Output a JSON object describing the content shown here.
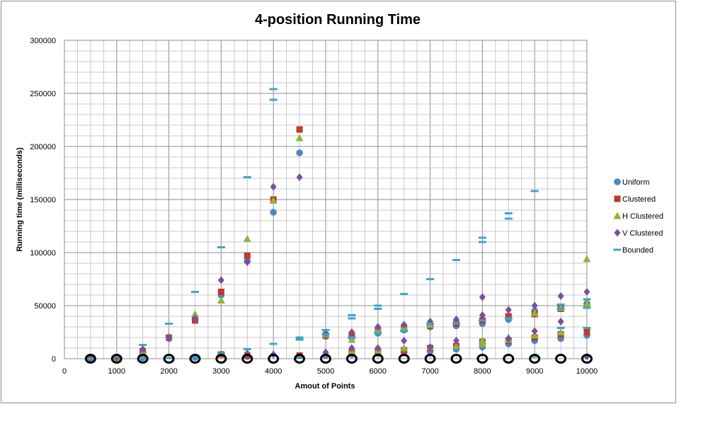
{
  "chart_data": {
    "type": "scatter",
    "title": "4-position Running Time",
    "xlabel": "Amout of Points",
    "ylabel": "Running time (milliseconds)",
    "xlim": [
      0,
      10000
    ],
    "ylim": [
      0,
      300000
    ],
    "x_ticks": [
      "0",
      "1000",
      "2000",
      "3000",
      "4000",
      "5000",
      "6000",
      "7000",
      "8000",
      "9000",
      "10000"
    ],
    "y_ticks": [
      "0",
      "50000",
      "100000",
      "150000",
      "200000",
      "250000",
      "300000"
    ],
    "grid": true,
    "legend_position": "right",
    "series": [
      {
        "name": "Uniform",
        "color": "#4a86c8",
        "marker": "circle",
        "points": [
          [
            500,
            0
          ],
          [
            1000,
            500
          ],
          [
            1500,
            6000
          ],
          [
            2000,
            19000
          ],
          [
            2500,
            37000
          ],
          [
            3000,
            60000
          ],
          [
            3500,
            92000
          ],
          [
            4000,
            138000
          ],
          [
            4500,
            194000
          ],
          [
            5000,
            21000
          ],
          [
            5500,
            20000
          ],
          [
            6000,
            24000
          ],
          [
            6500,
            27000
          ],
          [
            7000,
            30000
          ],
          [
            7500,
            31000
          ],
          [
            8000,
            33000
          ],
          [
            8500,
            37000
          ],
          [
            9000,
            17000
          ],
          [
            9500,
            19000
          ],
          [
            10000,
            22000
          ],
          [
            1500,
            800
          ],
          [
            2500,
            1200
          ],
          [
            3500,
            2000
          ],
          [
            5000,
            3000
          ],
          [
            5500,
            4000
          ],
          [
            6000,
            5000
          ],
          [
            6500,
            6000
          ],
          [
            7000,
            7000
          ],
          [
            7500,
            9000
          ],
          [
            8000,
            11000
          ],
          [
            8500,
            14000
          ],
          [
            9000,
            45000
          ],
          [
            9500,
            48000
          ],
          [
            10000,
            52000
          ]
        ]
      },
      {
        "name": "Clustered",
        "color": "#c0392b",
        "marker": "square",
        "points": [
          [
            500,
            0
          ],
          [
            1000,
            600
          ],
          [
            1500,
            7000
          ],
          [
            2000,
            20000
          ],
          [
            2500,
            36000
          ],
          [
            3000,
            63000
          ],
          [
            3500,
            97000
          ],
          [
            4000,
            150000
          ],
          [
            4500,
            216000
          ],
          [
            5000,
            22000
          ],
          [
            5500,
            22000
          ],
          [
            6000,
            27000
          ],
          [
            6500,
            29000
          ],
          [
            7000,
            31000
          ],
          [
            7500,
            33000
          ],
          [
            8000,
            36000
          ],
          [
            8500,
            40000
          ],
          [
            9000,
            42000
          ],
          [
            9500,
            47000
          ],
          [
            10000,
            50000
          ],
          [
            3000,
            4000
          ],
          [
            3500,
            3000
          ],
          [
            4500,
            3000
          ],
          [
            5500,
            6000
          ],
          [
            6000,
            7000
          ],
          [
            6500,
            8000
          ],
          [
            7000,
            10000
          ],
          [
            7500,
            12000
          ],
          [
            8000,
            16000
          ],
          [
            8500,
            17000
          ],
          [
            9000,
            20000
          ],
          [
            9500,
            23000
          ],
          [
            10000,
            25000
          ]
        ]
      },
      {
        "name": "H Clustered",
        "color": "#8cb43c",
        "marker": "triangle",
        "points": [
          [
            500,
            0
          ],
          [
            1000,
            500
          ],
          [
            1500,
            6000
          ],
          [
            2000,
            21000
          ],
          [
            2500,
            42000
          ],
          [
            3000,
            55000
          ],
          [
            3500,
            113000
          ],
          [
            4000,
            149000
          ],
          [
            4500,
            208000
          ],
          [
            5000,
            23000
          ],
          [
            5500,
            18000
          ],
          [
            6000,
            28000
          ],
          [
            6500,
            30000
          ],
          [
            7000,
            32000
          ],
          [
            7500,
            35000
          ],
          [
            8000,
            17000
          ],
          [
            8500,
            20000
          ],
          [
            9000,
            43000
          ],
          [
            9500,
            48000
          ],
          [
            10000,
            94000
          ],
          [
            5000,
            5000
          ],
          [
            5500,
            7000
          ],
          [
            6000,
            8000
          ],
          [
            6500,
            10000
          ],
          [
            7000,
            11000
          ],
          [
            7500,
            12000
          ],
          [
            8000,
            14000
          ],
          [
            8500,
            18000
          ],
          [
            9000,
            22000
          ],
          [
            9500,
            25000
          ],
          [
            10000,
            52000
          ]
        ]
      },
      {
        "name": "V Clustered",
        "color": "#7a4f9c",
        "marker": "diamond",
        "points": [
          [
            500,
            0
          ],
          [
            1000,
            1000
          ],
          [
            1500,
            9000
          ],
          [
            2000,
            20000
          ],
          [
            2500,
            38000
          ],
          [
            3000,
            74000
          ],
          [
            3500,
            91000
          ],
          [
            4000,
            162000
          ],
          [
            4500,
            171000
          ],
          [
            5000,
            24000
          ],
          [
            5500,
            25000
          ],
          [
            6000,
            30000
          ],
          [
            6500,
            32000
          ],
          [
            7000,
            35000
          ],
          [
            7500,
            37000
          ],
          [
            8000,
            58000
          ],
          [
            8500,
            46000
          ],
          [
            9000,
            50000
          ],
          [
            9500,
            59000
          ],
          [
            10000,
            63000
          ],
          [
            3500,
            5000
          ],
          [
            4000,
            4000
          ],
          [
            5000,
            6000
          ],
          [
            5500,
            10000
          ],
          [
            6000,
            10000
          ],
          [
            6500,
            17000
          ],
          [
            7000,
            11000
          ],
          [
            7500,
            17000
          ],
          [
            8000,
            41000
          ],
          [
            8500,
            19000
          ],
          [
            9000,
            26000
          ],
          [
            9500,
            35000
          ],
          [
            10000,
            2000
          ]
        ]
      },
      {
        "name": "Bounded",
        "color": "#39a8c4",
        "marker": "dash",
        "points": [
          [
            500,
            0
          ],
          [
            1000,
            2000
          ],
          [
            1500,
            13000
          ],
          [
            2000,
            33000
          ],
          [
            2500,
            63000
          ],
          [
            3000,
            105000
          ],
          [
            3500,
            171000
          ],
          [
            4000,
            244000
          ],
          [
            4000,
            254000
          ],
          [
            4500,
            20000
          ],
          [
            4500,
            18000
          ],
          [
            5000,
            27000
          ],
          [
            5500,
            41000
          ],
          [
            5500,
            38000
          ],
          [
            6000,
            50000
          ],
          [
            6000,
            47000
          ],
          [
            6500,
            61000
          ],
          [
            7000,
            75000
          ],
          [
            7500,
            93000
          ],
          [
            8000,
            114000
          ],
          [
            8000,
            110000
          ],
          [
            8500,
            137000
          ],
          [
            8500,
            132000
          ],
          [
            9000,
            158000
          ],
          [
            9500,
            51000
          ],
          [
            9500,
            47000
          ],
          [
            10000,
            48000
          ],
          [
            10000,
            29000
          ],
          [
            1500,
            1000
          ],
          [
            2000,
            500
          ],
          [
            2500,
            1500
          ],
          [
            3000,
            5000
          ],
          [
            3500,
            9000
          ],
          [
            4000,
            14000
          ],
          [
            4500,
            1500
          ],
          [
            5000,
            23000
          ],
          [
            5500,
            20000
          ],
          [
            6000,
            24000
          ],
          [
            6500,
            26000
          ],
          [
            7000,
            33000
          ],
          [
            7500,
            33000
          ],
          [
            8000,
            36000
          ],
          [
            8500,
            38000
          ],
          [
            9000,
            2000
          ],
          [
            9500,
            29000
          ],
          [
            10000,
            56000
          ]
        ]
      },
      {
        "name": "",
        "color": "#000000",
        "marker": "ring",
        "points": [
          [
            500,
            0
          ],
          [
            1000,
            0
          ],
          [
            1500,
            0
          ],
          [
            2000,
            0
          ],
          [
            2500,
            0
          ],
          [
            3000,
            0
          ],
          [
            3500,
            0
          ],
          [
            4000,
            0
          ],
          [
            4500,
            0
          ],
          [
            5000,
            0
          ],
          [
            5500,
            0
          ],
          [
            6000,
            0
          ],
          [
            6500,
            0
          ],
          [
            7000,
            0
          ],
          [
            7500,
            0
          ],
          [
            8000,
            0
          ],
          [
            8500,
            0
          ],
          [
            9000,
            0
          ],
          [
            9500,
            0
          ],
          [
            10000,
            0
          ]
        ]
      }
    ]
  }
}
